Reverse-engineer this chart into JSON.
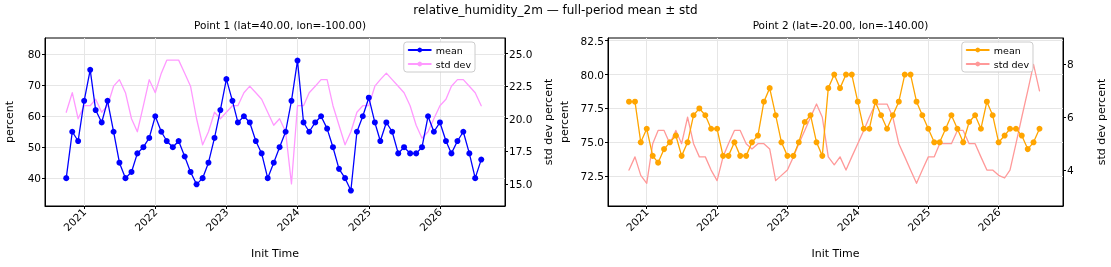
{
  "chart_data": [
    {
      "type": "line",
      "title": "relative_humidity_2m — full-period mean ± std",
      "subtitle": "Point 1 (lat=40.00, lon=-100.00)",
      "xlabel": "Init Time",
      "ylabel": "percent",
      "y2label": "std dev percent",
      "x": [
        "2020-10",
        "2020-11",
        "2020-12",
        "2021-01",
        "2021-02",
        "2021-03",
        "2021-04",
        "2021-05",
        "2021-06",
        "2021-07",
        "2021-08",
        "2021-09",
        "2021-10",
        "2021-11",
        "2021-12",
        "2022-01",
        "2022-02",
        "2022-03",
        "2022-04",
        "2022-05",
        "2022-06",
        "2022-07",
        "2022-08",
        "2022-09",
        "2022-10",
        "2022-11",
        "2022-12",
        "2023-01",
        "2023-02",
        "2023-03",
        "2023-04",
        "2023-05",
        "2023-06",
        "2023-07",
        "2023-08",
        "2023-09",
        "2023-10",
        "2023-11",
        "2023-12",
        "2024-01",
        "2024-02",
        "2024-03",
        "2024-04",
        "2024-05",
        "2024-06",
        "2024-07",
        "2024-08",
        "2024-09",
        "2024-10",
        "2024-11",
        "2024-12",
        "2025-01",
        "2025-02",
        "2025-03",
        "2025-04",
        "2025-05",
        "2025-06",
        "2025-07",
        "2025-08",
        "2025-09",
        "2025-10",
        "2025-11",
        "2025-12",
        "2026-01",
        "2026-02",
        "2026-03",
        "2026-04",
        "2026-05",
        "2026-06",
        "2026-07",
        "2026-08"
      ],
      "series": [
        {
          "name": "mean",
          "color": "#0000ff",
          "marker": "circle",
          "values": [
            40,
            55,
            52,
            65,
            75,
            62,
            58,
            65,
            55,
            45,
            40,
            42,
            48,
            50,
            53,
            60,
            55,
            52,
            50,
            52,
            47,
            42,
            38,
            40,
            45,
            53,
            62,
            72,
            65,
            58,
            60,
            58,
            52,
            48,
            40,
            45,
            50,
            55,
            65,
            78,
            58,
            55,
            58,
            60,
            56,
            50,
            43,
            40,
            36,
            55,
            60,
            66,
            58,
            52,
            58,
            55,
            48,
            50,
            48,
            48,
            50,
            60,
            55,
            58,
            52,
            48,
            52,
            55,
            48,
            40,
            46
          ]
        },
        {
          "name": "std dev",
          "color": "#ff99ff",
          "marker": "none",
          "axis": "y2",
          "values": [
            20.5,
            22,
            20,
            21,
            21,
            21.5,
            20.5,
            21,
            22.5,
            23,
            22,
            20,
            19,
            21,
            23,
            22,
            23.5,
            24.5,
            24.5,
            24.5,
            23.5,
            22.5,
            20,
            18,
            19,
            20.5,
            20,
            20.5,
            21,
            21,
            22,
            22.5,
            22,
            21.5,
            20.5,
            19.5,
            20,
            19,
            15,
            21,
            21,
            22,
            22.5,
            23,
            23,
            21,
            19.5,
            18,
            19,
            20.5,
            21,
            21,
            22.5,
            23,
            23.5,
            23,
            22.5,
            22,
            21,
            19.5,
            18.5,
            19,
            20,
            21,
            21.5,
            22.5,
            23,
            23,
            22.5,
            22,
            21
          ]
        }
      ],
      "xlim": [
        "2020-06-14",
        "2026-12-01"
      ],
      "xticks": [
        "2021",
        "2022",
        "2023",
        "2024",
        "2025",
        "2026"
      ],
      "ylim": [
        31,
        85.3
      ],
      "yticks": [
        40,
        50,
        60,
        70,
        80
      ],
      "y2lim": [
        13.3,
        26.2
      ],
      "y2ticks": [
        {
          "value": 15,
          "label": "15.0"
        },
        {
          "value": 17.5,
          "label": "17.5"
        },
        {
          "value": 20,
          "label": "20.0"
        },
        {
          "value": 22.5,
          "label": "22.5"
        },
        {
          "value": 25,
          "label": "25.0"
        }
      ],
      "grid": true,
      "legend": "top right",
      "line_style": "solid"
    },
    {
      "type": "line",
      "subtitle": "Point 2 (lat=-20.00, lon=-140.00)",
      "xlabel": "Init Time",
      "ylabel": "percent",
      "y2label": "std dev percent",
      "x": [
        "2020-10",
        "2020-11",
        "2020-12",
        "2021-01",
        "2021-02",
        "2021-03",
        "2021-04",
        "2021-05",
        "2021-06",
        "2021-07",
        "2021-08",
        "2021-09",
        "2021-10",
        "2021-11",
        "2021-12",
        "2022-01",
        "2022-02",
        "2022-03",
        "2022-04",
        "2022-05",
        "2022-06",
        "2022-07",
        "2022-08",
        "2022-09",
        "2022-10",
        "2022-11",
        "2022-12",
        "2023-01",
        "2023-02",
        "2023-03",
        "2023-04",
        "2023-05",
        "2023-06",
        "2023-07",
        "2023-08",
        "2023-09",
        "2023-10",
        "2023-11",
        "2023-12",
        "2024-01",
        "2024-02",
        "2024-03",
        "2024-04",
        "2024-05",
        "2024-06",
        "2024-07",
        "2024-08",
        "2024-09",
        "2024-10",
        "2024-11",
        "2024-12",
        "2025-01",
        "2025-02",
        "2025-03",
        "2025-04",
        "2025-05",
        "2025-06",
        "2025-07",
        "2025-08",
        "2025-09",
        "2025-10",
        "2025-11",
        "2025-12",
        "2026-01",
        "2026-02",
        "2026-03",
        "2026-04",
        "2026-05",
        "2026-06",
        "2026-07",
        "2026-08"
      ],
      "series": [
        {
          "name": "mean",
          "color": "#ffa500",
          "marker": "circle",
          "values": [
            78,
            78,
            75,
            76,
            74,
            73.5,
            74.5,
            75,
            75.5,
            74,
            75,
            77,
            77.5,
            77,
            76,
            76,
            74,
            74,
            75,
            74,
            74,
            75,
            75.5,
            78,
            79,
            77,
            75,
            74,
            74,
            75,
            76.5,
            77,
            75,
            74,
            79,
            80,
            79,
            80,
            80,
            78,
            76,
            76,
            78,
            77,
            76,
            77,
            78,
            80,
            80,
            78,
            77,
            76,
            75,
            75,
            76,
            77,
            76,
            75,
            76.5,
            77,
            76,
            78,
            77,
            75,
            75.5,
            76,
            76,
            75.5,
            74.5,
            75,
            76
          ]
        },
        {
          "name": "std dev",
          "color": "#ff9999",
          "marker": "none",
          "axis": "y2",
          "values": [
            4,
            4.5,
            3.8,
            3.5,
            5,
            5.5,
            5.5,
            5,
            5.5,
            5,
            6,
            5,
            4.5,
            4.5,
            4,
            3.6,
            4.5,
            5,
            5.5,
            5.5,
            5,
            4.8,
            5,
            5,
            4.8,
            3.6,
            3.8,
            4,
            4.5,
            5,
            5.5,
            6,
            6.5,
            6,
            4.5,
            4.2,
            4.5,
            4,
            4.5,
            5,
            5.5,
            6,
            6.5,
            6.5,
            6.5,
            6,
            5,
            4.5,
            4,
            3.5,
            4,
            4.5,
            4.5,
            5,
            5,
            5,
            5.5,
            5.5,
            5,
            5,
            4.5,
            4,
            4,
            3.8,
            3.7,
            4,
            5,
            6,
            7,
            8,
            7
          ]
        }
      ],
      "xlim": [
        "2020-06-14",
        "2026-12-01"
      ],
      "xticks": [
        "2021",
        "2022",
        "2023",
        "2024",
        "2025",
        "2026"
      ],
      "ylim": [
        70.3,
        82.7
      ],
      "yticks": [
        {
          "value": 72.5,
          "label": "72.5"
        },
        {
          "value": 75,
          "label": "75.0"
        },
        {
          "value": 77.5,
          "label": "77.5"
        },
        {
          "value": 80,
          "label": "80.0"
        },
        {
          "value": 82.5,
          "label": "82.5"
        }
      ],
      "y2lim": [
        2.64,
        9.0
      ],
      "y2ticks": [
        4,
        6,
        8
      ],
      "grid": true,
      "legend": "top right",
      "line_style": "solid"
    }
  ]
}
